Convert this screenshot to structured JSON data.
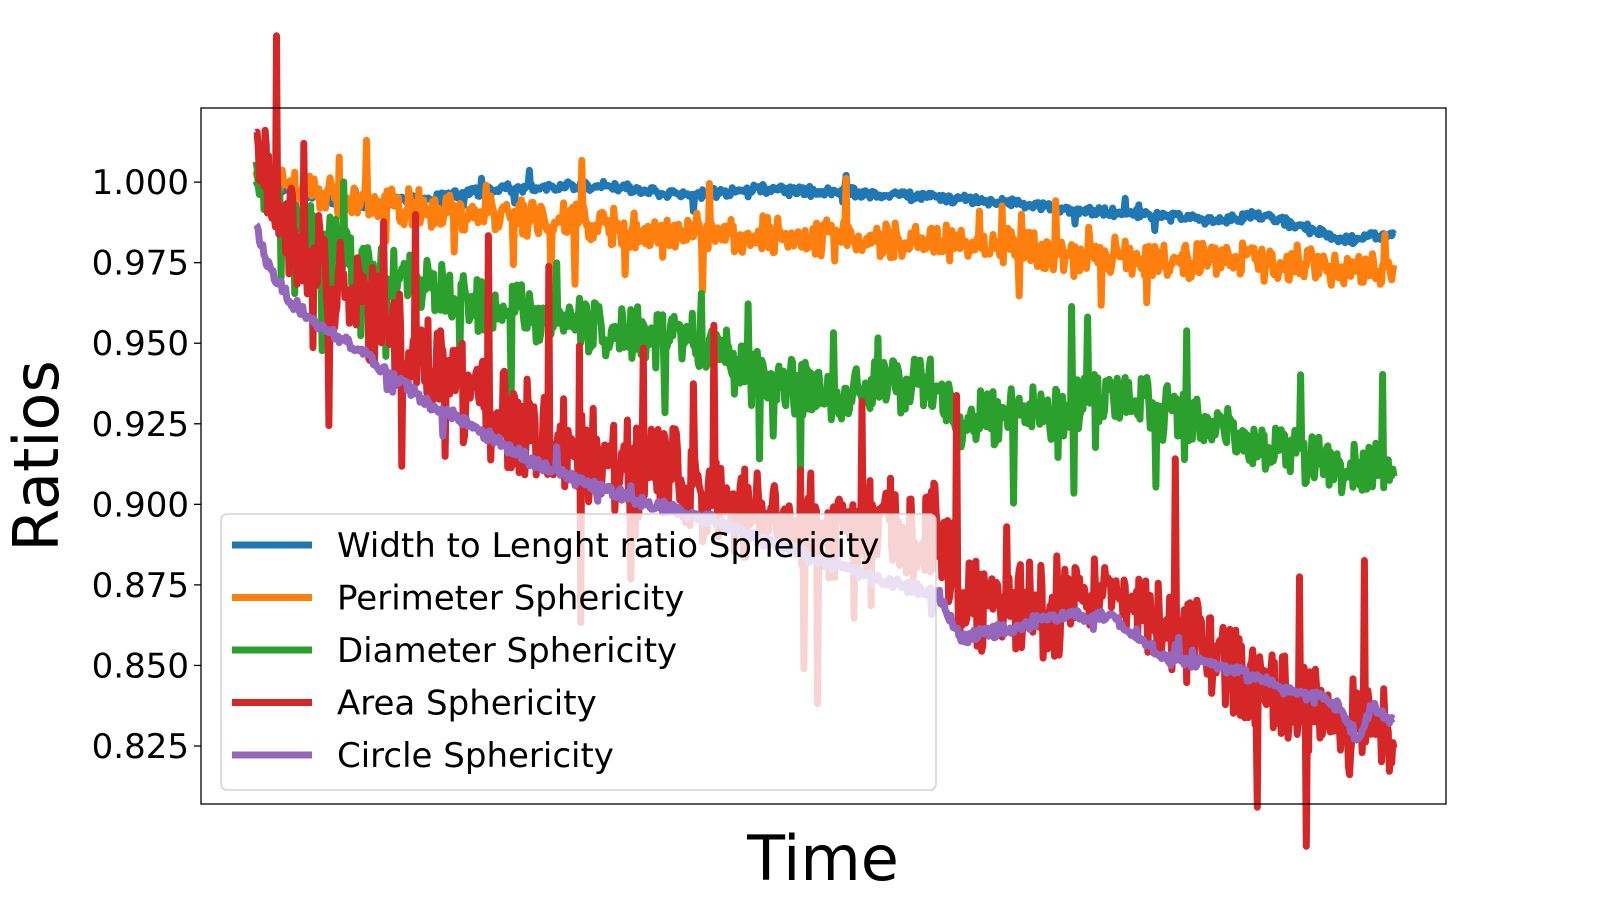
{
  "chart_data": {
    "type": "line",
    "title": "",
    "xlabel": "Time",
    "ylabel": "Ratios",
    "x_ticks_visible": false,
    "ylim": [
      0.807,
      1.023
    ],
    "yticks": [
      "0.825",
      "0.850",
      "0.875",
      "0.900",
      "0.925",
      "0.950",
      "0.975",
      "1.000"
    ],
    "ytick_values": [
      0.825,
      0.85,
      0.875,
      0.9,
      0.925,
      0.95,
      0.975,
      1.0
    ],
    "legend_position": "lower-left",
    "num_points": 1000,
    "series": [
      {
        "name": "Width to Lenght ratio Sphericity",
        "color": "#1f77b4",
        "anchors": [
          [
            0,
            1.0
          ],
          [
            0.08,
            0.993
          ],
          [
            0.15,
            0.995
          ],
          [
            0.22,
            0.998
          ],
          [
            0.3,
            0.999
          ],
          [
            0.38,
            0.996
          ],
          [
            0.45,
            0.998
          ],
          [
            0.52,
            0.997
          ],
          [
            0.6,
            0.995
          ],
          [
            0.65,
            0.994
          ],
          [
            0.7,
            0.992
          ],
          [
            0.78,
            0.99
          ],
          [
            0.85,
            0.988
          ],
          [
            0.88,
            0.99
          ],
          [
            0.92,
            0.986
          ],
          [
            0.96,
            0.982
          ],
          [
            1.0,
            0.984
          ]
        ],
        "noise": 0.0015,
        "spikes": 0.35
      },
      {
        "name": "Perimeter Sphericity",
        "color": "#ff7f0e",
        "anchors": [
          [
            0,
            1.002
          ],
          [
            0.08,
            0.994
          ],
          [
            0.2,
            0.99
          ],
          [
            0.35,
            0.985
          ],
          [
            0.5,
            0.983
          ],
          [
            0.65,
            0.98
          ],
          [
            0.8,
            0.976
          ],
          [
            0.9,
            0.975
          ],
          [
            1.0,
            0.972
          ]
        ],
        "noise": 0.006,
        "spikes": 0.8
      },
      {
        "name": "Diameter Sphericity",
        "color": "#2ca02c",
        "anchors": [
          [
            0,
            1.0
          ],
          [
            0.03,
            0.99
          ],
          [
            0.1,
            0.972
          ],
          [
            0.2,
            0.962
          ],
          [
            0.3,
            0.955
          ],
          [
            0.4,
            0.95
          ],
          [
            0.43,
            0.94
          ],
          [
            0.5,
            0.935
          ],
          [
            0.6,
            0.938
          ],
          [
            0.62,
            0.926
          ],
          [
            0.7,
            0.928
          ],
          [
            0.75,
            0.935
          ],
          [
            0.8,
            0.928
          ],
          [
            0.85,
            0.922
          ],
          [
            0.9,
            0.915
          ],
          [
            1.0,
            0.91
          ]
        ],
        "noise": 0.009,
        "spikes": 0.9
      },
      {
        "name": "Area Sphericity",
        "color": "#d62728",
        "anchors": [
          [
            0,
            1.01
          ],
          [
            0.03,
            0.985
          ],
          [
            0.08,
            0.965
          ],
          [
            0.14,
            0.945
          ],
          [
            0.2,
            0.93
          ],
          [
            0.28,
            0.918
          ],
          [
            0.35,
            0.91
          ],
          [
            0.42,
            0.9
          ],
          [
            0.5,
            0.893
          ],
          [
            0.6,
            0.893
          ],
          [
            0.62,
            0.87
          ],
          [
            0.7,
            0.868
          ],
          [
            0.75,
            0.87
          ],
          [
            0.8,
            0.86
          ],
          [
            0.85,
            0.852
          ],
          [
            0.9,
            0.842
          ],
          [
            0.95,
            0.832
          ],
          [
            1.0,
            0.826
          ]
        ],
        "noise": 0.016,
        "spikes": 1.0
      },
      {
        "name": "Circle Sphericity",
        "color": "#9467bd",
        "anchors": [
          [
            0,
            0.986
          ],
          [
            0.01,
            0.975
          ],
          [
            0.03,
            0.963
          ],
          [
            0.06,
            0.955
          ],
          [
            0.1,
            0.945
          ],
          [
            0.15,
            0.932
          ],
          [
            0.2,
            0.922
          ],
          [
            0.25,
            0.912
          ],
          [
            0.3,
            0.905
          ],
          [
            0.35,
            0.9
          ],
          [
            0.4,
            0.895
          ],
          [
            0.45,
            0.888
          ],
          [
            0.5,
            0.882
          ],
          [
            0.55,
            0.876
          ],
          [
            0.6,
            0.872
          ],
          [
            0.62,
            0.858
          ],
          [
            0.7,
            0.865
          ],
          [
            0.75,
            0.866
          ],
          [
            0.8,
            0.852
          ],
          [
            0.85,
            0.85
          ],
          [
            0.9,
            0.843
          ],
          [
            0.95,
            0.838
          ],
          [
            0.97,
            0.826
          ],
          [
            0.98,
            0.838
          ],
          [
            1.0,
            0.832
          ]
        ],
        "noise": 0.002,
        "spikes": 0.25
      }
    ]
  }
}
